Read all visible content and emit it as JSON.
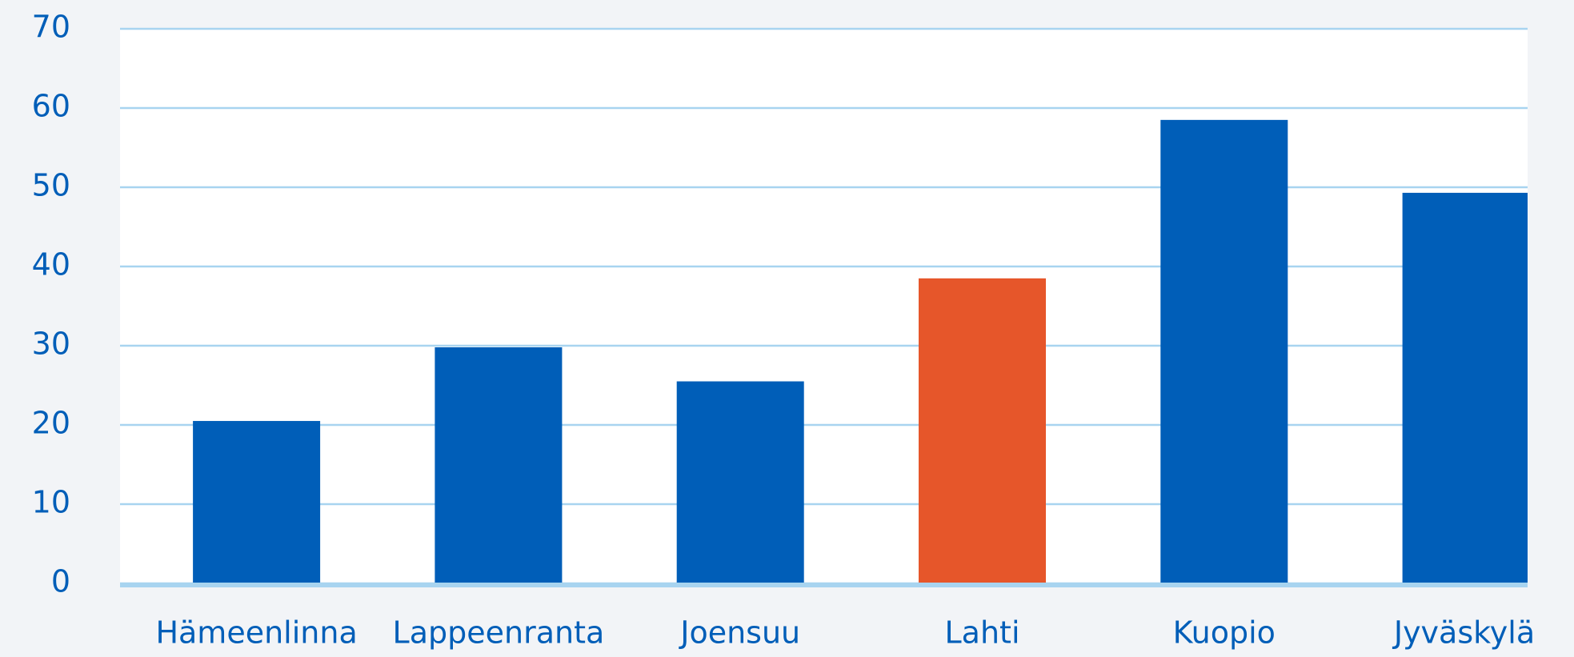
{
  "chart_data": {
    "type": "bar",
    "categories": [
      "Hämeenlinna",
      "Lappeenranta",
      "Joensuu",
      "Lahti",
      "Kuopio",
      "Jyväskylä"
    ],
    "values": [
      20.5,
      29.8,
      25.5,
      38.5,
      58.5,
      49.3
    ],
    "colors": [
      "#005eb8",
      "#005eb8",
      "#005eb8",
      "#e6562a",
      "#005eb8",
      "#005eb8"
    ],
    "ylim": [
      0,
      70
    ],
    "yticks": [
      0,
      10,
      20,
      30,
      40,
      50,
      60,
      70
    ],
    "grid": true
  }
}
